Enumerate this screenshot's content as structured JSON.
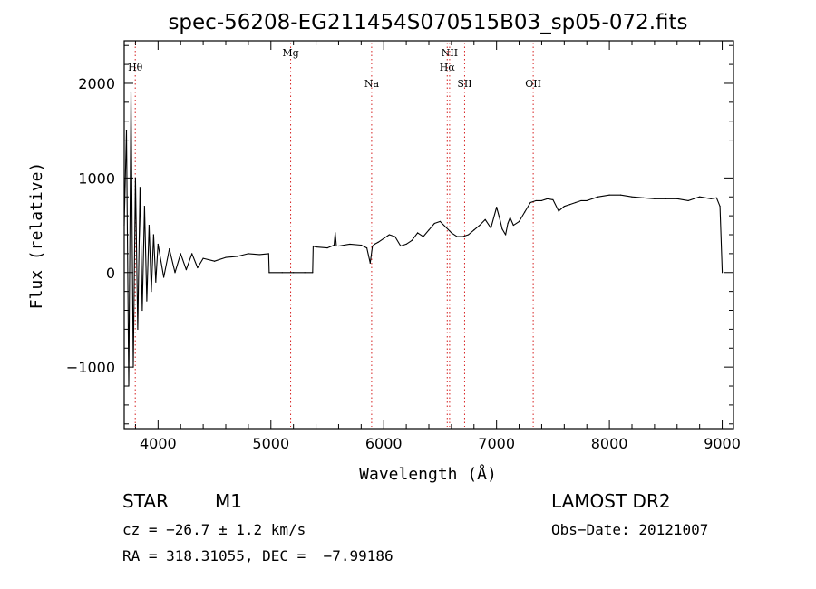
{
  "chart_data": {
    "type": "line",
    "title": "spec-56208-EG211454S070515B03_sp05-072.fits",
    "xlabel": "Wavelength (Å)",
    "ylabel": "Flux (relative)",
    "xlim": [
      3700,
      9100
    ],
    "ylim": [
      -1650,
      2450
    ],
    "xticks": [
      4000,
      5000,
      6000,
      7000,
      8000,
      9000
    ],
    "yticks": [
      -1000,
      0,
      1000,
      2000
    ],
    "grid": false,
    "line_color": "#000000",
    "series": [
      {
        "x": [
          3700,
          3720,
          3740,
          3760,
          3780,
          3800,
          3820,
          3840,
          3860,
          3880,
          3900,
          3920,
          3940,
          3960,
          3980,
          4000,
          4050,
          4100,
          4150,
          4200,
          4250,
          4300,
          4350,
          4400,
          4500,
          4600,
          4700,
          4800,
          4900,
          4980,
          4985,
          5100,
          5200,
          5300,
          5370,
          5375,
          5400,
          5500,
          5560,
          5570,
          5580,
          5600,
          5700,
          5800,
          5850,
          5880,
          5900,
          5920,
          5950,
          6000,
          6050,
          6100,
          6150,
          6200,
          6250,
          6300,
          6350,
          6400,
          6450,
          6500,
          6550,
          6600,
          6650,
          6700,
          6750,
          6800,
          6850,
          6900,
          6950,
          7000,
          7030,
          7050,
          7080,
          7100,
          7120,
          7150,
          7200,
          7250,
          7300,
          7350,
          7400,
          7450,
          7500,
          7550,
          7600,
          7650,
          7700,
          7750,
          7800,
          7900,
          8000,
          8100,
          8200,
          8300,
          8400,
          8500,
          8600,
          8700,
          8800,
          8900,
          8950,
          8980,
          9000
        ],
        "y": [
          500,
          1500,
          -1200,
          1900,
          -1000,
          1000,
          -600,
          900,
          -400,
          700,
          -300,
          500,
          -200,
          400,
          -100,
          300,
          -50,
          250,
          0,
          200,
          30,
          200,
          50,
          150,
          120,
          160,
          170,
          200,
          190,
          200,
          0,
          0,
          0,
          0,
          0,
          280,
          270,
          260,
          290,
          420,
          280,
          280,
          300,
          290,
          260,
          100,
          280,
          300,
          320,
          360,
          400,
          380,
          280,
          300,
          340,
          420,
          380,
          450,
          520,
          540,
          480,
          420,
          380,
          380,
          400,
          450,
          500,
          560,
          470,
          690,
          560,
          460,
          400,
          520,
          580,
          500,
          540,
          640,
          740,
          760,
          760,
          780,
          770,
          650,
          700,
          720,
          740,
          760,
          760,
          800,
          820,
          820,
          800,
          790,
          780,
          780,
          780,
          760,
          800,
          780,
          790,
          700,
          0
        ]
      }
    ],
    "lines": [
      {
        "label": "Hθ",
        "x": 3798
      },
      {
        "label": "Mg",
        "x": 5175
      },
      {
        "label": "Na",
        "x": 5893
      },
      {
        "label": "NII",
        "x": 6584
      },
      {
        "label": "Hα",
        "x": 6563
      },
      {
        "label": "SII",
        "x": 6717
      },
      {
        "label": "OII",
        "x": 7325
      }
    ],
    "line_marker_color": "#d62020"
  },
  "info": {
    "object_class": "STAR",
    "subclass": "M1",
    "survey": "LAMOST DR2",
    "cz": "cz = −26.7 ± 1.2 km/s",
    "obs_date": "Obs−Date: 20121007",
    "coords": "RA = 318.31055, DEC =  −7.99186"
  }
}
